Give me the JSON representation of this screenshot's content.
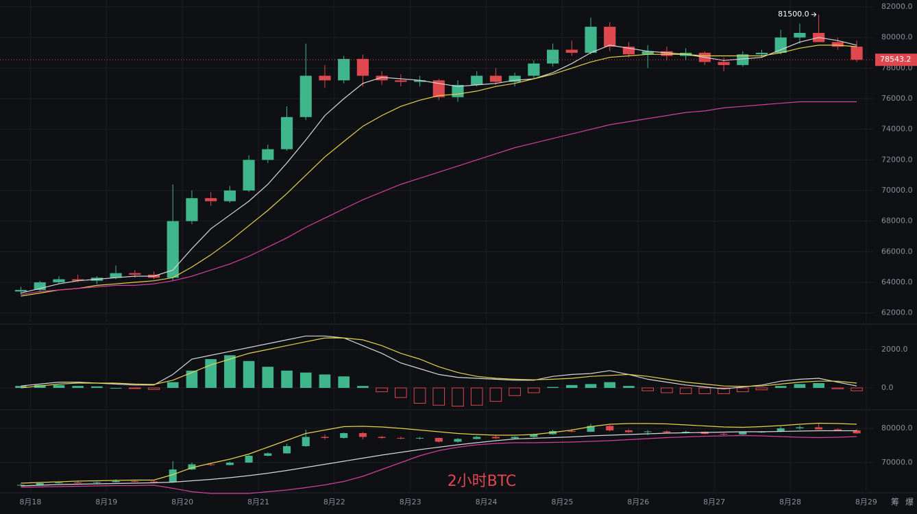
{
  "chart_data": {
    "type": "candlestick",
    "x": [
      17.875,
      18.125,
      18.375,
      18.625,
      18.875,
      19.125,
      19.375,
      19.625,
      19.875,
      20.125,
      20.375,
      20.625,
      20.875,
      21.125,
      21.375,
      21.625,
      21.875,
      22.125,
      22.375,
      22.625,
      22.875,
      23.125,
      23.375,
      23.625,
      23.875,
      24.125,
      24.375,
      24.625,
      24.875,
      25.125,
      25.375,
      25.625,
      25.875,
      26.125,
      26.375,
      26.625,
      26.875,
      27.125,
      27.375,
      27.625,
      27.875,
      28.125,
      28.375,
      28.625,
      28.875
    ],
    "open": [
      63400,
      63500,
      64000,
      64200,
      64100,
      64300,
      64600,
      64500,
      64300,
      68000,
      69500,
      69300,
      70000,
      72000,
      72700,
      74800,
      77500,
      77200,
      78600,
      77500,
      77200,
      77100,
      77200,
      76100,
      76900,
      77500,
      77100,
      77500,
      78300,
      79200,
      79000,
      80700,
      79400,
      78900,
      79100,
      78800,
      79000,
      78400,
      78200,
      78900,
      79000,
      80000,
      80300,
      79700,
      79400
    ],
    "high": [
      63700,
      64100,
      64400,
      64500,
      64400,
      65100,
      64800,
      64700,
      70400,
      70000,
      69900,
      70300,
      72300,
      73000,
      75500,
      79600,
      78200,
      78800,
      78900,
      77800,
      77600,
      77500,
      77300,
      77200,
      77800,
      78000,
      77700,
      78500,
      79600,
      79800,
      81300,
      81000,
      79700,
      79500,
      79400,
      79300,
      79100,
      78700,
      79100,
      79200,
      80500,
      80900,
      81500,
      80000,
      79800
    ],
    "low": [
      63200,
      63400,
      63900,
      64000,
      63900,
      64200,
      64300,
      64200,
      64100,
      67800,
      69000,
      69200,
      69900,
      71800,
      72600,
      74600,
      76700,
      77000,
      76800,
      76900,
      76800,
      76800,
      75900,
      75800,
      76800,
      76900,
      76800,
      77300,
      78100,
      78800,
      78900,
      79100,
      78700,
      78000,
      78500,
      78500,
      78200,
      77800,
      78100,
      78700,
      78900,
      79600,
      79700,
      79200,
      78400
    ],
    "close": [
      63500,
      64000,
      64200,
      64100,
      64300,
      64600,
      64500,
      64300,
      68000,
      69500,
      69300,
      70000,
      72000,
      72700,
      74800,
      77500,
      77200,
      78600,
      77500,
      77200,
      77100,
      77200,
      76100,
      76900,
      77500,
      77100,
      77500,
      78300,
      79200,
      79000,
      80700,
      79400,
      78900,
      79100,
      78800,
      79000,
      78400,
      78200,
      78900,
      79000,
      80000,
      80300,
      79700,
      79400,
      78543.2
    ],
    "up_color": "#3fb68b",
    "down_color": "#e0484f",
    "lines": [
      {
        "color": "#d9d9d9",
        "values": [
          63300,
          63600,
          63900,
          64100,
          64200,
          64300,
          64400,
          64400,
          64800,
          66200,
          67500,
          68400,
          69300,
          70400,
          71800,
          73300,
          74900,
          76000,
          77000,
          77400,
          77300,
          77200,
          77000,
          76800,
          76900,
          77000,
          77200,
          77300,
          77700,
          78300,
          79000,
          79500,
          79300,
          79100,
          79000,
          78900,
          78700,
          78500,
          78600,
          78700,
          79200,
          79700,
          80000,
          79800,
          79500
        ]
      },
      {
        "color": "#e8d44d",
        "values": [
          63100,
          63300,
          63500,
          63600,
          63800,
          63900,
          64000,
          64100,
          64300,
          65000,
          65800,
          66700,
          67700,
          68700,
          69800,
          71000,
          72200,
          73200,
          74200,
          74900,
          75500,
          75900,
          76200,
          76300,
          76500,
          76800,
          77000,
          77300,
          77600,
          78000,
          78400,
          78700,
          78800,
          78900,
          78900,
          78900,
          78800,
          78800,
          78800,
          78800,
          79000,
          79300,
          79500,
          79500,
          79400
        ]
      },
      {
        "color": "#d6409f",
        "values": [
          63200,
          63400,
          63500,
          63600,
          63700,
          63800,
          63800,
          63900,
          64100,
          64400,
          64800,
          65200,
          65700,
          66300,
          66900,
          67600,
          68200,
          68800,
          69400,
          69900,
          70400,
          70800,
          71200,
          71600,
          72000,
          72400,
          72800,
          73100,
          73400,
          73700,
          74000,
          74300,
          74500,
          74700,
          74900,
          75100,
          75200,
          75400,
          75500,
          75600,
          75700,
          75800,
          75800,
          75800,
          75800
        ]
      }
    ],
    "xlim": [
      17.6,
      29.1
    ],
    "xticks": [
      {
        "value": 18,
        "label": "8月18"
      },
      {
        "value": 19,
        "label": "8月19"
      },
      {
        "value": 20,
        "label": "8月20"
      },
      {
        "value": 21,
        "label": "8月21"
      },
      {
        "value": 22,
        "label": "8月22"
      },
      {
        "value": 23,
        "label": "8月23"
      },
      {
        "value": 24,
        "label": "8月24"
      },
      {
        "value": 25,
        "label": "8月25"
      },
      {
        "value": 26,
        "label": "8月26"
      },
      {
        "value": 27,
        "label": "8月27"
      },
      {
        "value": 28,
        "label": "8月28"
      },
      {
        "value": 29,
        "label": "8月29"
      }
    ],
    "ylim": [
      61400,
      82450
    ],
    "yticks": [
      {
        "value": 62000,
        "label": "62000.0"
      },
      {
        "value": 64000,
        "label": "64000.0"
      },
      {
        "value": 66000,
        "label": "66000.0"
      },
      {
        "value": 68000,
        "label": "68000.0"
      },
      {
        "value": 70000,
        "label": "70000.0"
      },
      {
        "value": 72000,
        "label": "72000.0"
      },
      {
        "value": 74000,
        "label": "74000.0"
      },
      {
        "value": 76000,
        "label": "76000.0"
      },
      {
        "value": 78000,
        "label": "78000.0"
      },
      {
        "value": 80000,
        "label": "80000.0"
      },
      {
        "value": 82000,
        "label": "82000.0"
      }
    ],
    "grid": true,
    "high_marker": {
      "value": 81500,
      "label": "81500.0"
    },
    "current_price": {
      "value": 78543.2,
      "label": "78543.2"
    },
    "macd": {
      "ylim": [
        -1070,
        3140
      ],
      "yticks": [
        {
          "value": 0,
          "label": "0.0"
        },
        {
          "value": 2000,
          "label": "2000.0"
        }
      ],
      "histogram": [
        100,
        150,
        150,
        100,
        80,
        0,
        -30,
        -80,
        300,
        900,
        1500,
        1700,
        1400,
        1100,
        900,
        800,
        700,
        600,
        100,
        -200,
        -500,
        -800,
        -900,
        -950,
        -900,
        -700,
        -400,
        -250,
        50,
        150,
        200,
        300,
        100,
        -150,
        -250,
        -300,
        -300,
        -300,
        -200,
        -100,
        100,
        200,
        250,
        -50,
        -150
      ],
      "lines": [
        {
          "color": "#d9d9d9",
          "values": [
            100,
            200,
            300,
            300,
            250,
            200,
            150,
            150,
            700,
            1500,
            1700,
            1900,
            2100,
            2300,
            2500,
            2700,
            2700,
            2600,
            2200,
            1800,
            1300,
            1000,
            700,
            550,
            500,
            450,
            400,
            400,
            600,
            700,
            750,
            900,
            700,
            450,
            300,
            150,
            50,
            -50,
            50,
            150,
            350,
            450,
            500,
            300,
            100
          ]
        },
        {
          "color": "#e8d44d",
          "values": [
            0,
            100,
            200,
            250,
            250,
            250,
            200,
            180,
            400,
            800,
            1200,
            1500,
            1800,
            2000,
            2200,
            2400,
            2600,
            2600,
            2500,
            2200,
            1800,
            1500,
            1100,
            800,
            600,
            500,
            450,
            420,
            450,
            500,
            600,
            650,
            700,
            600,
            450,
            300,
            200,
            100,
            80,
            100,
            200,
            300,
            350,
            350,
            250
          ]
        }
      ]
    },
    "boll": {
      "ylim": [
        61600,
        85000
      ],
      "yticks": [
        {
          "value": 70000,
          "label": "70000.0"
        },
        {
          "value": 80000,
          "label": "80000.0"
        }
      ],
      "lines": [
        {
          "color": "#e8d44d",
          "values": [
            64000,
            64200,
            64400,
            64600,
            64700,
            64800,
            64900,
            64900,
            66500,
            68500,
            69800,
            71000,
            72500,
            74500,
            76500,
            78500,
            79500,
            80500,
            80600,
            80400,
            80000,
            79500,
            79000,
            78500,
            78200,
            78000,
            78000,
            78200,
            78800,
            79500,
            80500,
            81200,
            81400,
            81400,
            81300,
            81000,
            80700,
            80400,
            80300,
            80500,
            80800,
            81200,
            81500,
            81400,
            81200
          ]
        },
        {
          "color": "#d9d9d9",
          "values": [
            63200,
            63400,
            63600,
            63700,
            63800,
            63900,
            64000,
            64100,
            64300,
            64700,
            65100,
            65600,
            66200,
            66900,
            67700,
            68600,
            69500,
            70400,
            71300,
            72200,
            73000,
            73800,
            74500,
            75200,
            75800,
            76400,
            76900,
            77100,
            77300,
            77500,
            77800,
            78000,
            78200,
            78400,
            78600,
            78700,
            78800,
            78900,
            79000,
            79000,
            79100,
            79200,
            79300,
            79300,
            79300
          ]
        },
        {
          "color": "#d6409f",
          "values": [
            62800,
            62900,
            63000,
            63100,
            63200,
            63300,
            63300,
            63400,
            62500,
            61500,
            61000,
            61000,
            61000,
            61500,
            62000,
            62700,
            63500,
            64500,
            66000,
            68000,
            70000,
            72000,
            73500,
            74500,
            75200,
            75600,
            75800,
            75800,
            75900,
            76000,
            76200,
            76400,
            76700,
            77000,
            77300,
            77500,
            77700,
            77800,
            77900,
            77800,
            77600,
            77400,
            77300,
            77400,
            77600
          ]
        }
      ]
    },
    "watermark": "2小时BTC",
    "side_buttons": [
      "筹",
      "爆"
    ]
  }
}
